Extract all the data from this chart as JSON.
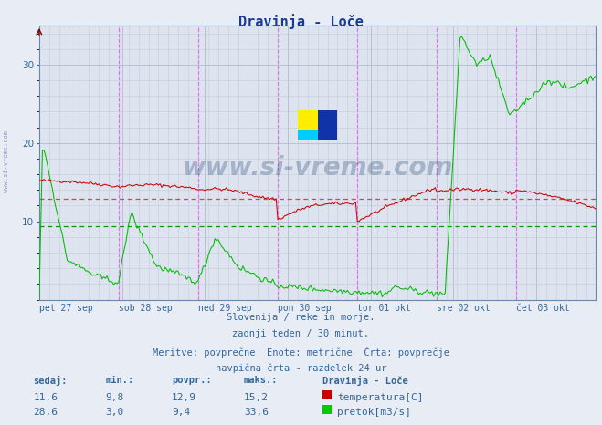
{
  "title": "Dravinja - Loče",
  "title_color": "#1a3a99",
  "bg_color": "#e8ecf4",
  "plot_bg_color": "#dde4f0",
  "x_labels": [
    "pet 27 sep",
    "sob 28 sep",
    "ned 29 sep",
    "pon 30 sep",
    "tor 01 okt",
    "sre 02 okt",
    "čet 03 okt"
  ],
  "n_points": 337,
  "ylim": [
    0,
    35
  ],
  "yticks": [
    10,
    20,
    30
  ],
  "temp_avg": 12.9,
  "flow_avg": 9.4,
  "temp_color": "#cc0000",
  "flow_color": "#00bb00",
  "avg_temp_color": "#dd4444",
  "avg_flow_color": "#009900",
  "vline_color_day": "#ff00ff",
  "footer_line1": "Slovenija / reke in morje.",
  "footer_line2": "zadnji teden / 30 minut.",
  "footer_line3": "Meritve: povprečne  Enote: metrične  Črta: povprečje",
  "footer_line4": "navpična črta - razdelek 24 ur",
  "watermark": "www.si-vreme.com",
  "legend_title": "Dravinja - Loče",
  "temp_sedaj": "11,6",
  "temp_min": "9,8",
  "temp_povpr": "12,9",
  "temp_maks": "15,2",
  "flow_sedaj": "28,6",
  "flow_min": "3,0",
  "flow_povpr": "9,4",
  "flow_maks": "33,6",
  "temp_label": "temperatura[C]",
  "flow_label": "pretok[m3/s]",
  "label_color": "#336699",
  "side_watermark": "www.si-vreme.com"
}
